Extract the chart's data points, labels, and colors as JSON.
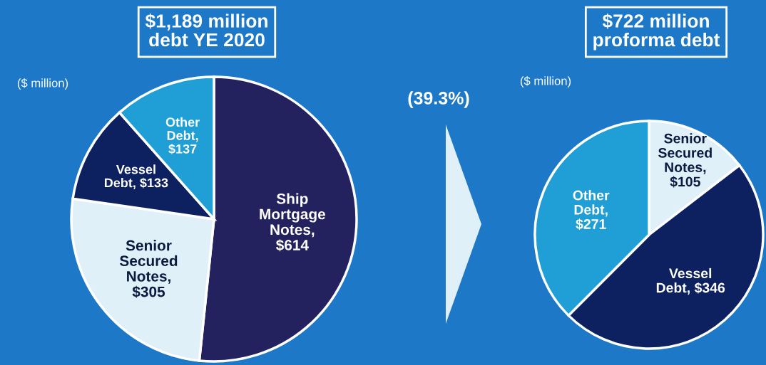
{
  "chart_data": [
    {
      "type": "pie",
      "title": "$1,189 million\ndebt YE 2020",
      "categories": [
        "Ship\nMortgage\nNotes,\n$614",
        "Senior\nSecured\nNotes,\n$305",
        "Vessel\nDebt, $133",
        "Other\nDebt,\n$137"
      ],
      "values": [
        614,
        305,
        133,
        137
      ],
      "colors": [
        "#23215e",
        "#dff0f9",
        "#0d2160",
        "#1f9fd6"
      ],
      "annotations": [
        "($ million)"
      ]
    },
    {
      "type": "pie",
      "title": "$722 million\nproforma debt",
      "categories": [
        "Senior\nSecured\nNotes,\n$105",
        "Vessel\nDebt, $346",
        "Other\nDebt,\n$271"
      ],
      "values": [
        105,
        346,
        271
      ],
      "colors": [
        "#dff0f9",
        "#0d2160",
        "#1f9fd6"
      ],
      "annotations": [
        "($ million)",
        "(39.3%)"
      ]
    }
  ]
}
